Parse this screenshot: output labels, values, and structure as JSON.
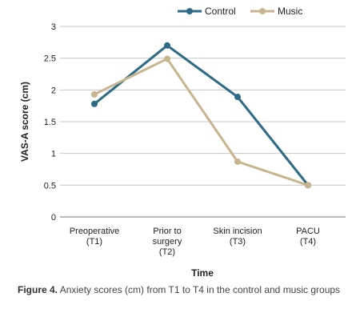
{
  "chart_data": {
    "type": "line",
    "categories": [
      [
        "Preoperative",
        "(T1)"
      ],
      [
        "Prior to",
        "surgery",
        "(T2)"
      ],
      [
        "Skin incision",
        "(T3)"
      ],
      [
        "PACU",
        "(T4)"
      ]
    ],
    "series": [
      {
        "name": "Control",
        "values": [
          1.78,
          2.7,
          1.89,
          0.5
        ],
        "color": "#2c6a86"
      },
      {
        "name": "Music",
        "values": [
          1.93,
          2.49,
          0.87,
          0.5
        ],
        "color": "#c8b48f"
      }
    ],
    "yticks": [
      "0",
      "0.5",
      "1",
      "1.5",
      "2",
      "2.5",
      "3"
    ],
    "ylim": [
      0,
      3
    ],
    "xlabel": "Time",
    "ylabel": "VAS-A score (cm)",
    "grid": true,
    "legend": "top"
  },
  "caption": {
    "label": "Figure 4.",
    "text": " Anxiety scores (cm) from T1 to T4 in the control and music groups"
  }
}
